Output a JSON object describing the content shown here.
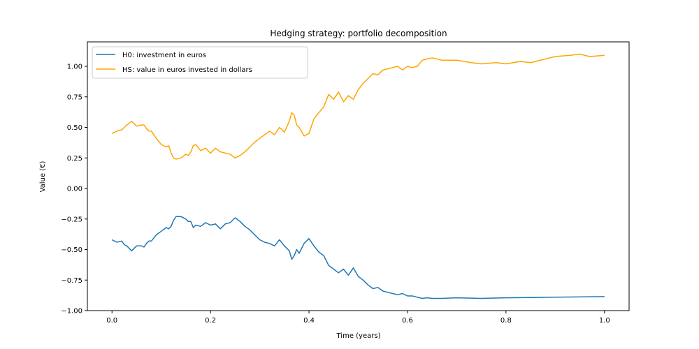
{
  "chart_data": {
    "type": "line",
    "title": "Hedging strategy: portfolio decomposition",
    "xlabel": "Time (years)",
    "ylabel": "Value (€)",
    "xlim": [
      -0.05,
      1.05
    ],
    "ylim": [
      -1.0,
      1.2
    ],
    "xticks": [
      0.0,
      0.2,
      0.4,
      0.6,
      0.8,
      1.0
    ],
    "xtick_labels": [
      "0.0",
      "0.2",
      "0.4",
      "0.6",
      "0.8",
      "1.0"
    ],
    "yticks": [
      -1.0,
      -0.75,
      -0.5,
      -0.25,
      0.0,
      0.25,
      0.5,
      0.75,
      1.0
    ],
    "ytick_labels": [
      "−1.00",
      "−0.75",
      "−0.50",
      "−0.25",
      "0.00",
      "0.25",
      "0.50",
      "0.75",
      "1.00"
    ],
    "grid": false,
    "legend_position": "top-left",
    "series": [
      {
        "name": "H0: investment in euros",
        "color": "#1f77b4",
        "x": [
          0.0,
          0.01,
          0.02,
          0.025,
          0.03,
          0.04,
          0.05,
          0.06,
          0.065,
          0.07,
          0.075,
          0.08,
          0.09,
          0.1,
          0.11,
          0.115,
          0.12,
          0.125,
          0.13,
          0.14,
          0.15,
          0.155,
          0.16,
          0.165,
          0.17,
          0.18,
          0.19,
          0.2,
          0.21,
          0.22,
          0.23,
          0.24,
          0.25,
          0.26,
          0.27,
          0.28,
          0.29,
          0.3,
          0.31,
          0.32,
          0.33,
          0.34,
          0.35,
          0.36,
          0.365,
          0.37,
          0.375,
          0.38,
          0.39,
          0.4,
          0.41,
          0.42,
          0.43,
          0.44,
          0.45,
          0.46,
          0.47,
          0.48,
          0.49,
          0.5,
          0.51,
          0.52,
          0.53,
          0.54,
          0.55,
          0.56,
          0.57,
          0.58,
          0.59,
          0.6,
          0.61,
          0.62,
          0.63,
          0.64,
          0.65,
          0.67,
          0.7,
          0.75,
          0.8,
          0.85,
          0.9,
          0.95,
          1.0
        ],
        "values": [
          -0.42,
          -0.44,
          -0.43,
          -0.46,
          -0.47,
          -0.51,
          -0.47,
          -0.47,
          -0.48,
          -0.45,
          -0.43,
          -0.43,
          -0.38,
          -0.35,
          -0.32,
          -0.33,
          -0.31,
          -0.26,
          -0.23,
          -0.23,
          -0.25,
          -0.27,
          -0.27,
          -0.32,
          -0.3,
          -0.31,
          -0.28,
          -0.3,
          -0.29,
          -0.33,
          -0.29,
          -0.28,
          -0.24,
          -0.27,
          -0.31,
          -0.34,
          -0.38,
          -0.42,
          -0.44,
          -0.45,
          -0.47,
          -0.42,
          -0.47,
          -0.51,
          -0.58,
          -0.55,
          -0.5,
          -0.53,
          -0.45,
          -0.41,
          -0.47,
          -0.52,
          -0.55,
          -0.63,
          -0.66,
          -0.69,
          -0.66,
          -0.71,
          -0.65,
          -0.72,
          -0.75,
          -0.79,
          -0.82,
          -0.81,
          -0.84,
          -0.85,
          -0.86,
          -0.87,
          -0.86,
          -0.88,
          -0.88,
          -0.89,
          -0.9,
          -0.895,
          -0.9,
          -0.9,
          -0.895,
          -0.9,
          -0.895,
          -0.893,
          -0.89,
          -0.888,
          -0.885
        ]
      },
      {
        "name": "HS: value in euros invested in dollars",
        "color": "#ffa500",
        "x": [
          0.0,
          0.01,
          0.02,
          0.025,
          0.03,
          0.04,
          0.05,
          0.06,
          0.065,
          0.07,
          0.075,
          0.08,
          0.09,
          0.1,
          0.11,
          0.115,
          0.12,
          0.125,
          0.13,
          0.14,
          0.15,
          0.155,
          0.16,
          0.165,
          0.17,
          0.18,
          0.19,
          0.2,
          0.21,
          0.22,
          0.23,
          0.24,
          0.25,
          0.26,
          0.27,
          0.28,
          0.29,
          0.3,
          0.31,
          0.32,
          0.33,
          0.34,
          0.35,
          0.36,
          0.365,
          0.37,
          0.375,
          0.38,
          0.39,
          0.4,
          0.41,
          0.42,
          0.43,
          0.44,
          0.45,
          0.46,
          0.47,
          0.48,
          0.49,
          0.5,
          0.51,
          0.52,
          0.53,
          0.54,
          0.55,
          0.56,
          0.57,
          0.58,
          0.59,
          0.6,
          0.61,
          0.62,
          0.63,
          0.64,
          0.65,
          0.67,
          0.7,
          0.73,
          0.75,
          0.78,
          0.8,
          0.83,
          0.85,
          0.88,
          0.9,
          0.93,
          0.95,
          0.97,
          1.0
        ],
        "values": [
          0.45,
          0.47,
          0.48,
          0.5,
          0.52,
          0.55,
          0.51,
          0.52,
          0.52,
          0.49,
          0.47,
          0.47,
          0.41,
          0.36,
          0.34,
          0.35,
          0.29,
          0.25,
          0.24,
          0.25,
          0.28,
          0.27,
          0.3,
          0.35,
          0.36,
          0.31,
          0.33,
          0.29,
          0.33,
          0.3,
          0.29,
          0.28,
          0.25,
          0.27,
          0.3,
          0.34,
          0.38,
          0.41,
          0.44,
          0.47,
          0.44,
          0.5,
          0.46,
          0.55,
          0.62,
          0.6,
          0.52,
          0.5,
          0.43,
          0.45,
          0.57,
          0.62,
          0.67,
          0.77,
          0.73,
          0.79,
          0.71,
          0.76,
          0.73,
          0.81,
          0.86,
          0.9,
          0.94,
          0.93,
          0.97,
          0.98,
          0.99,
          1.0,
          0.97,
          1.0,
          0.99,
          1.0,
          1.05,
          1.06,
          1.07,
          1.05,
          1.05,
          1.03,
          1.02,
          1.03,
          1.02,
          1.04,
          1.03,
          1.06,
          1.08,
          1.09,
          1.1,
          1.08,
          1.09
        ]
      }
    ]
  }
}
